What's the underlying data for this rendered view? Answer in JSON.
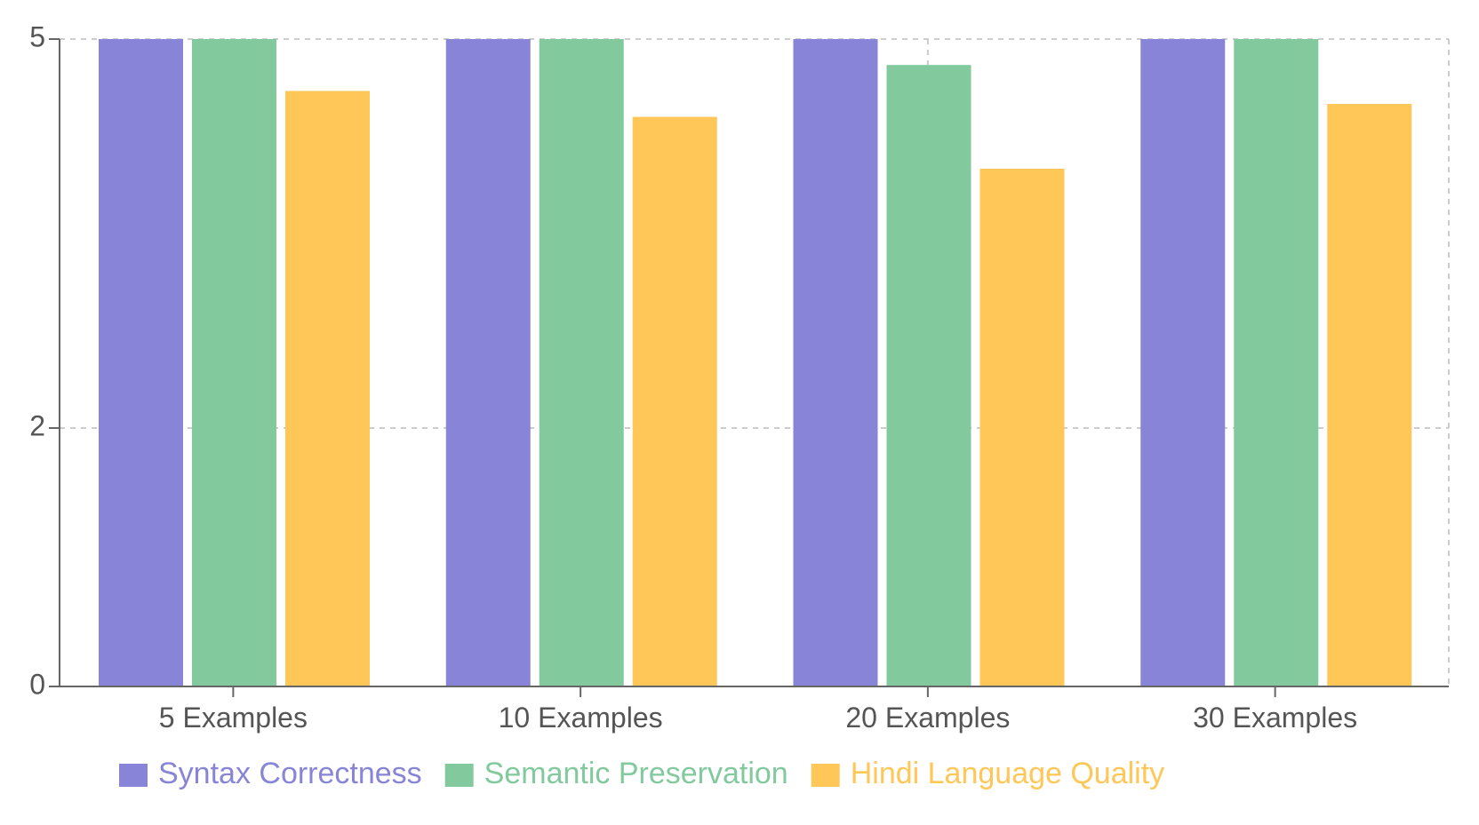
{
  "chart_data": {
    "type": "bar",
    "title": "",
    "xlabel": "",
    "ylabel": "",
    "categories": [
      "5 Examples",
      "10 Examples",
      "20 Examples",
      "30 Examples"
    ],
    "series": [
      {
        "name": "Syntax Correctness",
        "color": "#8884d8",
        "values": [
          5,
          5,
          5,
          5
        ]
      },
      {
        "name": "Semantic Preservation",
        "color": "#82ca9d",
        "values": [
          5,
          5,
          4.8,
          5
        ]
      },
      {
        "name": "Hindi Language Quality",
        "color": "#ffc658",
        "values": [
          4.6,
          4.4,
          4.0,
          4.5
        ]
      }
    ],
    "y_ticks": [
      {
        "value": 0,
        "label": "0"
      },
      {
        "value": 2,
        "label": "2"
      },
      {
        "value": 5,
        "label": "5"
      }
    ],
    "ylim": [
      0,
      5
    ],
    "grid": true,
    "legend_position": "bottom"
  }
}
